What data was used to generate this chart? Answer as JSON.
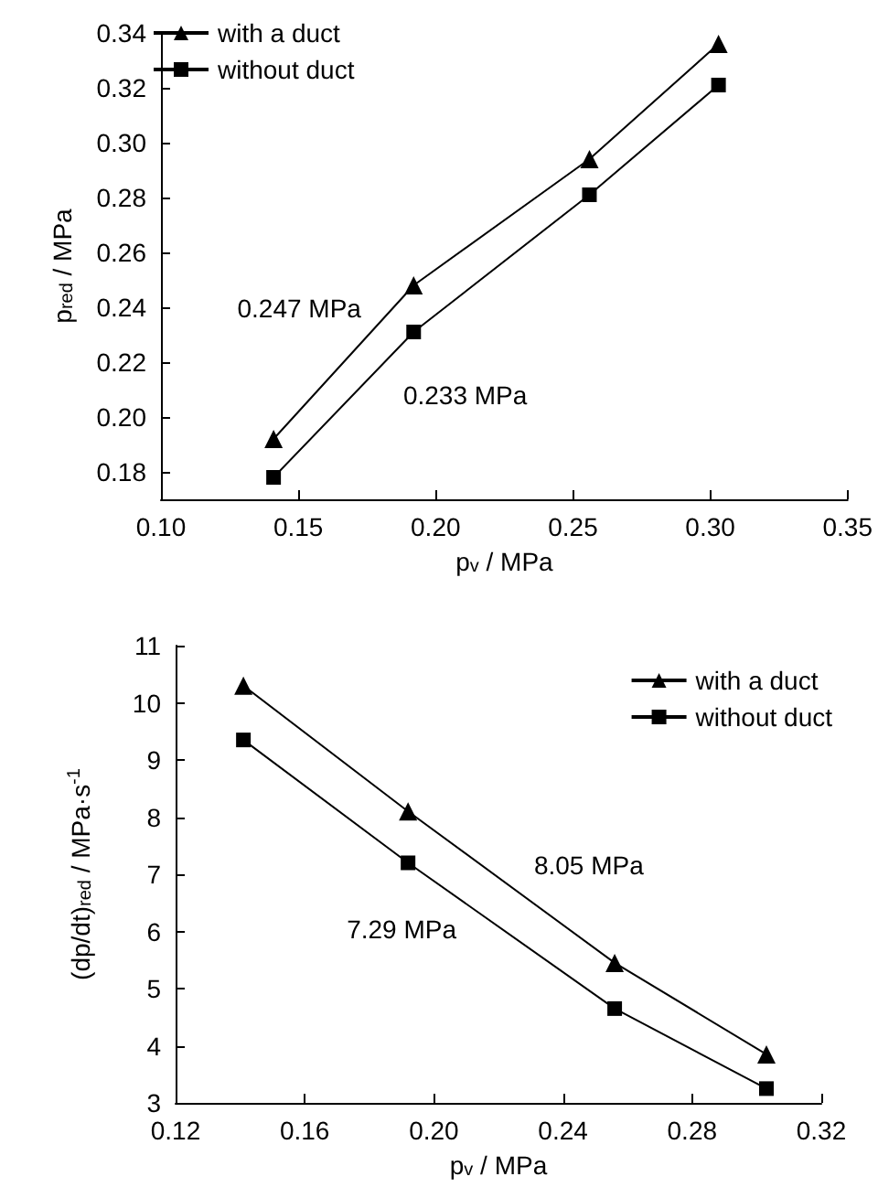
{
  "chart_data": [
    {
      "type": "line",
      "xlabel": "p$_{v}$ / MPa",
      "ylabel": "p$_{red}$ / MPa",
      "x": [
        0.141,
        0.192,
        0.256,
        0.303
      ],
      "series": [
        {
          "name": "with a duct",
          "color": "#000000",
          "marker": "triangle",
          "values": [
            0.192,
            0.248,
            0.294,
            0.336
          ]
        },
        {
          "name": "without duct",
          "color": "#000000",
          "marker": "square",
          "values": [
            0.178,
            0.231,
            0.281,
            0.321
          ]
        }
      ],
      "xlim": [
        0.1,
        0.35
      ],
      "xticks": [
        {
          "value": 0.1,
          "label": "0.10"
        },
        {
          "value": 0.15,
          "label": "0.15"
        },
        {
          "value": 0.2,
          "label": "0.20"
        },
        {
          "value": 0.25,
          "label": "0.25"
        },
        {
          "value": 0.3,
          "label": "0.30"
        },
        {
          "value": 0.35,
          "label": "0.35"
        }
      ],
      "ylim": [
        0.17,
        0.34
      ],
      "yticks": [
        {
          "value": 0.18,
          "label": "0.18"
        },
        {
          "value": 0.2,
          "label": "0.20"
        },
        {
          "value": 0.22,
          "label": "0.22"
        },
        {
          "value": 0.24,
          "label": "0.24"
        },
        {
          "value": 0.26,
          "label": "0.26"
        },
        {
          "value": 0.28,
          "label": "0.28"
        },
        {
          "value": 0.3,
          "label": "0.30"
        },
        {
          "value": 0.32,
          "label": "0.32"
        },
        {
          "value": 0.34,
          "label": "0.34"
        }
      ],
      "annotations": [
        "0.247 MPa",
        "0.233 MPa"
      ],
      "grid": false,
      "legend": "top left"
    },
    {
      "type": "line",
      "xlabel": "p$_{v}$ / MPa",
      "ylabel": "(dp/dt)$_{red}$ / MPa·s$^{-1}$",
      "x": [
        0.141,
        0.192,
        0.256,
        0.303
      ],
      "series": [
        {
          "name": "with a duct",
          "color": "#000000",
          "marker": "triangle",
          "values": [
            10.3,
            8.1,
            5.45,
            3.85
          ]
        },
        {
          "name": "without duct",
          "color": "#000000",
          "marker": "square",
          "values": [
            9.35,
            7.2,
            4.65,
            3.25
          ]
        }
      ],
      "xlim": [
        0.12,
        0.32
      ],
      "xticks": [
        {
          "value": 0.12,
          "label": "0.12"
        },
        {
          "value": 0.16,
          "label": "0.16"
        },
        {
          "value": 0.2,
          "label": "0.20"
        },
        {
          "value": 0.24,
          "label": "0.24"
        },
        {
          "value": 0.28,
          "label": "0.28"
        },
        {
          "value": 0.32,
          "label": "0.32"
        }
      ],
      "ylim": [
        3,
        11
      ],
      "yticks": [
        3,
        4,
        5,
        6,
        7,
        8,
        9,
        10,
        11
      ],
      "annotations": [
        "8.05 MPa",
        "7.29 MPa"
      ],
      "grid": false,
      "legend": "top right"
    }
  ]
}
